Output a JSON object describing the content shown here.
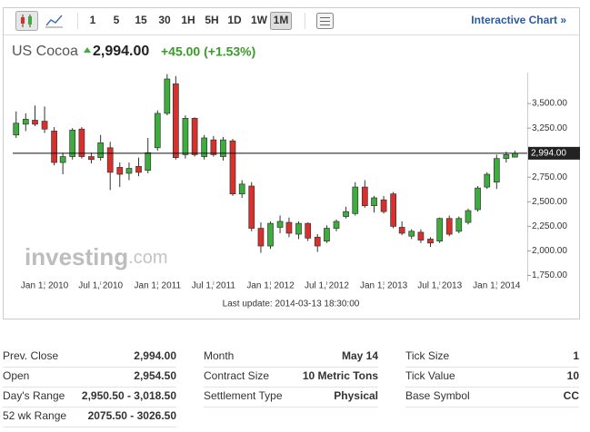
{
  "toolbar": {
    "periods": [
      "1",
      "5",
      "15",
      "30",
      "1H",
      "5H",
      "1D",
      "1W",
      "1M"
    ],
    "selected": "1M",
    "link": "Interactive Chart »"
  },
  "quote": {
    "name": "US Cocoa",
    "price": "2,994.00",
    "change": "+45.00 (+1.53%)"
  },
  "chart_data": {
    "type": "candlestick",
    "watermark": "investing.com",
    "watermark_bold": "investing",
    "footer": "Last update: 2014-03-13 18:30:00",
    "x": [
      "2009-10-01",
      "2009-11-01",
      "2009-12-01",
      "2010-01-01",
      "2010-02-01",
      "2010-03-01",
      "2010-04-01",
      "2010-05-01",
      "2010-06-01",
      "2010-07-01",
      "2010-08-01",
      "2010-09-01",
      "2010-10-01",
      "2010-11-01",
      "2010-12-01",
      "2011-01-01",
      "2011-02-01",
      "2011-03-01",
      "2011-04-01",
      "2011-05-01",
      "2011-06-01",
      "2011-07-01",
      "2011-08-01",
      "2011-09-01",
      "2011-10-01",
      "2011-11-01",
      "2011-12-01",
      "2012-01-01",
      "2012-02-01",
      "2012-03-01",
      "2012-04-01",
      "2012-05-01",
      "2012-06-01",
      "2012-07-01",
      "2012-08-01",
      "2012-09-01",
      "2012-10-01",
      "2012-11-01",
      "2012-12-01",
      "2013-01-01",
      "2013-02-01",
      "2013-03-01",
      "2013-04-01",
      "2013-05-01",
      "2013-06-01",
      "2013-07-01",
      "2013-08-01",
      "2013-09-01",
      "2013-10-01",
      "2013-11-01",
      "2013-12-01",
      "2014-01-01",
      "2014-02-01",
      "2014-03-01"
    ],
    "open": [
      3180,
      3290,
      3330,
      3320,
      3220,
      2900,
      2960,
      3240,
      2960,
      2950,
      3050,
      2850,
      2790,
      2860,
      2820,
      3050,
      3400,
      3700,
      2980,
      3350,
      2960,
      3130,
      2960,
      3120,
      2580,
      2660,
      2230,
      2050,
      2240,
      2290,
      2170,
      2280,
      2140,
      2100,
      2230,
      2350,
      2380,
      2650,
      2460,
      2520,
      2580,
      2240,
      2150,
      2190,
      2120,
      2100,
      2330,
      2200,
      2290,
      2420,
      2650,
      2700,
      2940,
      2954.5
    ],
    "high": [
      3420,
      3400,
      3480,
      3470,
      3260,
      3000,
      3250,
      3260,
      3000,
      3180,
      3110,
      2900,
      2900,
      2950,
      3150,
      3430,
      3800,
      3780,
      3380,
      3360,
      3180,
      3170,
      3160,
      3140,
      2720,
      2700,
      2290,
      2300,
      2360,
      2340,
      2300,
      2290,
      2170,
      2260,
      2320,
      2450,
      2700,
      2720,
      2560,
      2560,
      2600,
      2300,
      2220,
      2220,
      2140,
      2340,
      2360,
      2350,
      2430,
      2660,
      2800,
      2980,
      3010,
      3018.5
    ],
    "low": [
      3150,
      3220,
      3270,
      3200,
      2870,
      2780,
      2930,
      2940,
      2890,
      2920,
      2620,
      2650,
      2720,
      2760,
      2790,
      3020,
      3380,
      2930,
      2940,
      2960,
      2930,
      2960,
      2920,
      2560,
      2540,
      2200,
      1980,
      2020,
      2180,
      2140,
      2120,
      2100,
      1990,
      2080,
      2200,
      2330,
      2360,
      2440,
      2390,
      2380,
      2230,
      2160,
      2120,
      2080,
      2040,
      2080,
      2150,
      2180,
      2270,
      2400,
      2630,
      2630,
      2900,
      2950.5
    ],
    "close": [
      3300,
      3340,
      3290,
      3240,
      2900,
      2960,
      3230,
      2960,
      2930,
      3100,
      2800,
      2780,
      2840,
      2800,
      3000,
      3400,
      3750,
      2950,
      3350,
      2980,
      3150,
      2980,
      3130,
      2580,
      2680,
      2230,
      2050,
      2280,
      2300,
      2180,
      2280,
      2130,
      2050,
      2230,
      2300,
      2400,
      2650,
      2460,
      2540,
      2400,
      2250,
      2180,
      2200,
      2110,
      2080,
      2330,
      2170,
      2330,
      2410,
      2640,
      2780,
      2940,
      2980,
      2994
    ],
    "up_color": "#3dae3d",
    "down_color": "#d9302c",
    "last_price": {
      "value": 2994,
      "label": "2,994.00"
    },
    "xlim": [
      "2009-09-20",
      "2014-04-10"
    ],
    "xticks": [
      {
        "value": "2010-01-01",
        "label": "Jan 1, 2010"
      },
      {
        "value": "2010-07-01",
        "label": "Jul 1, 2010"
      },
      {
        "value": "2011-01-01",
        "label": "Jan 1, 2011"
      },
      {
        "value": "2011-07-01",
        "label": "Jul 1, 2011"
      },
      {
        "value": "2012-01-01",
        "label": "Jan 1, 2012"
      },
      {
        "value": "2012-07-01",
        "label": "Jul 1, 2012"
      },
      {
        "value": "2013-01-01",
        "label": "Jan 1, 2013"
      },
      {
        "value": "2013-07-01",
        "label": "Jul 1, 2013"
      },
      {
        "value": "2014-01-01",
        "label": "Jan 1, 2014"
      }
    ],
    "ylim": [
      1690,
      3815
    ],
    "yticks": [
      {
        "value": 1750,
        "label": "1,750.00"
      },
      {
        "value": 2000,
        "label": "2,000.00"
      },
      {
        "value": 2250,
        "label": "2,250.00"
      },
      {
        "value": 2500,
        "label": "2,500.00"
      },
      {
        "value": 2750,
        "label": "2,750.00"
      },
      {
        "value": 3250,
        "label": "3,250.00"
      },
      {
        "value": 3500,
        "label": "3,500.00"
      }
    ]
  },
  "stats": [
    [
      {
        "label": "Prev. Close",
        "value": "2,994.00"
      },
      {
        "label": "Open",
        "value": "2,954.50"
      },
      {
        "label": "Day's Range",
        "value": "2,950.50 - 3,018.50"
      },
      {
        "label": "52 wk Range",
        "value": "2075.50 - 3026.50"
      }
    ],
    [
      {
        "label": "Month",
        "value": "May 14"
      },
      {
        "label": "Contract Size",
        "value": "10 Metric Tons"
      },
      {
        "label": "Settlement Type",
        "value": "Physical"
      }
    ],
    [
      {
        "label": "Tick Size",
        "value": "1"
      },
      {
        "label": "Tick Value",
        "value": "10"
      },
      {
        "label": "Base Symbol",
        "value": "CC"
      }
    ]
  ]
}
